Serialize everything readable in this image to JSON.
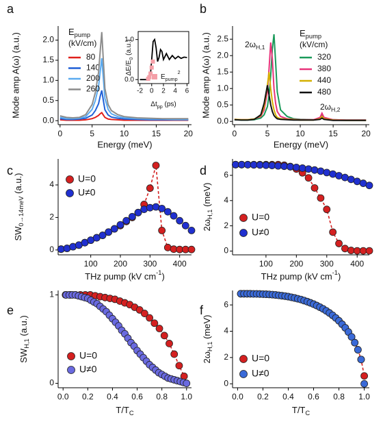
{
  "chart_data": [
    {
      "panel": "a",
      "type": "line",
      "xlabel": "Energy (meV)",
      "ylabel": "Mode amp A(ω) (a.u.)",
      "legend_title": {
        "base": "E",
        "sub": "pump"
      },
      "legend_subtitle": "(kV/cm)",
      "x": [
        0,
        1,
        2,
        3,
        4,
        5,
        5.5,
        6,
        6.25,
        6.5,
        6.75,
        7,
        7.5,
        8,
        9,
        10,
        12,
        14,
        16,
        18,
        20
      ],
      "series": [
        {
          "name": "80",
          "color": "#e0201b",
          "values": [
            0.02,
            0.01,
            0.01,
            0.01,
            0.02,
            0.05,
            0.08,
            0.13,
            0.17,
            0.2,
            0.14,
            0.08,
            0.04,
            0.03,
            0.02,
            0.01,
            0.01,
            0.01,
            0.01,
            0.01,
            0.01
          ]
        },
        {
          "name": "140",
          "color": "#1f5fd6",
          "values": [
            0.05,
            0.03,
            0.03,
            0.04,
            0.06,
            0.14,
            0.25,
            0.42,
            0.6,
            0.75,
            0.5,
            0.27,
            0.14,
            0.09,
            0.06,
            0.04,
            0.03,
            0.02,
            0.02,
            0.02,
            0.02
          ]
        },
        {
          "name": "200",
          "color": "#5aaaf0",
          "values": [
            0.08,
            0.05,
            0.05,
            0.06,
            0.1,
            0.28,
            0.5,
            0.85,
            1.2,
            1.55,
            1.05,
            0.55,
            0.28,
            0.17,
            0.1,
            0.07,
            0.05,
            0.04,
            0.04,
            0.03,
            0.03
          ]
        },
        {
          "name": "260",
          "color": "#8c8c8c",
          "values": [
            0.12,
            0.08,
            0.07,
            0.08,
            0.15,
            0.4,
            0.7,
            1.2,
            1.7,
            2.2,
            1.5,
            0.8,
            0.4,
            0.25,
            0.15,
            0.1,
            0.07,
            0.06,
            0.05,
            0.05,
            0.05
          ]
        }
      ],
      "xlim": [
        -0.3,
        20.5
      ],
      "ylim": [
        -0.1,
        2.35
      ],
      "xticks": [
        0,
        5,
        10,
        15,
        20
      ],
      "yticks": [
        {
          "value": 0,
          "label": "0.0"
        },
        0.5,
        {
          "value": 1,
          "label": "1.0"
        },
        1.5,
        {
          "value": 2,
          "label": "2.0"
        }
      ]
    },
    {
      "type": "line",
      "xlabel": {
        "base": "Δt",
        "sub": "pp",
        "rest": " (ps)"
      },
      "ylabel": {
        "base": "ΔE/E",
        "sub": "0",
        "rest": " (a.u.)"
      },
      "x": [
        -2,
        -1.5,
        -1,
        -0.5,
        -0.25,
        0,
        0.25,
        0.5,
        0.75,
        1,
        1.25,
        1.5,
        1.75,
        2,
        2.5,
        3,
        3.5,
        4,
        4.5,
        5,
        5.5,
        6
      ],
      "series": [
        {
          "color": "#000000",
          "values": [
            0,
            0,
            0,
            0,
            0.05,
            0.5,
            0.95,
            1.0,
            0.8,
            0.45,
            0.55,
            0.75,
            0.7,
            0.5,
            0.65,
            0.5,
            0.6,
            0.52,
            0.58,
            0.53,
            0.56,
            0.55
          ]
        },
        {
          "name": {
            "base": "E",
            "sub": "pump",
            "sup": "2"
          },
          "color": "#f4a0a8",
          "marker": "square",
          "x": [
            -0.6,
            -0.4,
            -0.2,
            0,
            0.2
          ],
          "values": [
            0.02,
            0.06,
            0.15,
            0.3,
            0.45
          ]
        }
      ],
      "xlim": [
        -2.3,
        6.3
      ],
      "ylim": [
        -0.1,
        1.2
      ],
      "xticks": [
        -2,
        0,
        2,
        4,
        6
      ],
      "yticks": [
        {
          "value": 0,
          "label": "0.0"
        },
        {
          "value": 1,
          "label": "1.0"
        }
      ]
    },
    {
      "panel": "b",
      "type": "line",
      "xlabel": "Energy (meV)",
      "ylabel": "Mode amp A(ω) (a.u.)",
      "legend_title": {
        "base": "E",
        "sub": "pump"
      },
      "legend_subtitle": "(kV/cm)",
      "annotations": [
        {
          "base": "2ω",
          "sub": "H,1"
        },
        {
          "base": "2ω",
          "sub": "H,2"
        }
      ],
      "x": [
        0,
        1,
        2,
        3,
        4,
        4.5,
        5,
        5.25,
        5.5,
        5.75,
        6,
        6.25,
        6.5,
        7,
        8,
        9,
        10,
        12,
        13,
        13.3,
        13.6,
        15,
        17,
        20
      ],
      "series": [
        {
          "name": "320",
          "color": "#1a9a5a",
          "values": [
            0.05,
            0.04,
            0.04,
            0.05,
            0.1,
            0.2,
            0.45,
            0.8,
            1.4,
            2.2,
            2.65,
            1.8,
            0.9,
            0.35,
            0.15,
            0.08,
            0.06,
            0.05,
            0.1,
            0.22,
            0.1,
            0.05,
            0.04,
            0.04
          ]
        },
        {
          "name": "380",
          "color": "#e8337a",
          "values": [
            0.06,
            0.05,
            0.05,
            0.07,
            0.15,
            0.35,
            0.9,
            1.6,
            2.4,
            1.9,
            1.0,
            0.55,
            0.3,
            0.15,
            0.08,
            0.06,
            0.05,
            0.05,
            0.12,
            0.25,
            0.12,
            0.05,
            0.04,
            0.04
          ]
        },
        {
          "name": "440",
          "color": "#d4b000",
          "values": [
            0.06,
            0.05,
            0.05,
            0.07,
            0.18,
            0.45,
            1.1,
            1.5,
            1.0,
            0.6,
            0.35,
            0.2,
            0.12,
            0.08,
            0.06,
            0.05,
            0.04,
            0.04,
            0.08,
            0.15,
            0.08,
            0.04,
            0.03,
            0.03
          ]
        },
        {
          "name": "480",
          "color": "#111111",
          "values": [
            0.05,
            0.04,
            0.04,
            0.06,
            0.2,
            0.55,
            1.1,
            0.8,
            0.5,
            0.3,
            0.18,
            0.12,
            0.08,
            0.06,
            0.05,
            0.04,
            0.04,
            0.04,
            0.06,
            0.1,
            0.06,
            0.03,
            0.03,
            0.03
          ]
        }
      ],
      "xlim": [
        -0.3,
        20.5
      ],
      "ylim": [
        -0.1,
        2.9
      ],
      "xticks": [
        0,
        5,
        10,
        15,
        20
      ],
      "yticks": [
        {
          "value": 0,
          "label": "0.0"
        },
        0.5,
        {
          "value": 1,
          "label": "1.0"
        },
        1.5,
        {
          "value": 2,
          "label": "2.0"
        },
        2.5
      ]
    },
    {
      "panel": "c",
      "type": "scatter",
      "xlabel": {
        "base": "THz pump  (kV cm",
        "sup": "-1",
        "rest": ")"
      },
      "ylabel": {
        "base": "SW",
        "sub": "0→14meV",
        "rest": " (a.u.)"
      },
      "x": [
        0,
        20,
        40,
        60,
        80,
        100,
        120,
        140,
        160,
        180,
        200,
        220,
        240,
        260,
        280,
        300,
        320,
        340,
        360,
        380,
        400,
        420,
        440
      ],
      "series": [
        {
          "name": "U=0",
          "color": "#d42020",
          "line": "dashed",
          "values": [
            0.05,
            0.1,
            0.2,
            0.3,
            0.45,
            0.6,
            0.75,
            0.9,
            1.1,
            1.3,
            1.5,
            1.75,
            2.0,
            2.3,
            2.8,
            3.8,
            5.2,
            1.2,
            0.15,
            0.05,
            0.03,
            0.03,
            0.03
          ]
        },
        {
          "name": "U≠0",
          "color": "#2030d0",
          "values": [
            0.05,
            0.1,
            0.2,
            0.3,
            0.45,
            0.6,
            0.75,
            0.9,
            1.1,
            1.3,
            1.55,
            1.8,
            2.05,
            2.3,
            2.5,
            2.6,
            2.65,
            2.55,
            2.35,
            2.1,
            1.8,
            1.5,
            1.2
          ]
        }
      ],
      "xlim": [
        -10,
        440
      ],
      "ylim": [
        -0.3,
        5.6
      ],
      "xticks": [
        100,
        200,
        300,
        400
      ],
      "yticks": [
        0,
        2,
        4
      ]
    },
    {
      "panel": "d",
      "type": "scatter",
      "xlabel": {
        "base": "THz pump  (kV cm",
        "sup": "-1",
        "rest": ")"
      },
      "ylabel": {
        "base": "2ω",
        "sub": "H,1",
        "rest": " (meV)"
      },
      "x": [
        0,
        20,
        40,
        60,
        80,
        100,
        120,
        140,
        160,
        180,
        200,
        220,
        240,
        260,
        280,
        300,
        320,
        340,
        360,
        380,
        400,
        420,
        440
      ],
      "series": [
        {
          "name": "U=0",
          "color": "#d42020",
          "line": "dashed",
          "values": [
            6.85,
            6.85,
            6.85,
            6.85,
            6.85,
            6.85,
            6.85,
            6.85,
            6.8,
            6.7,
            6.5,
            6.2,
            5.8,
            5.0,
            4.2,
            3.3,
            1.5,
            0.6,
            0.2,
            0.05,
            0.02,
            0.02,
            0.02
          ]
        },
        {
          "name": "U≠0",
          "color": "#2030d0",
          "values": [
            6.85,
            6.85,
            6.84,
            6.83,
            6.82,
            6.8,
            6.78,
            6.75,
            6.72,
            6.68,
            6.63,
            6.57,
            6.5,
            6.42,
            6.33,
            6.22,
            6.1,
            5.97,
            5.83,
            5.68,
            5.52,
            5.37,
            5.2
          ]
        }
      ],
      "xlim": [
        -10,
        440
      ],
      "ylim": [
        -0.3,
        7.3
      ],
      "xticks": [
        100,
        200,
        300,
        400
      ],
      "yticks": [
        0,
        2,
        4,
        6
      ]
    },
    {
      "panel": "e",
      "type": "scatter",
      "xlabel": {
        "base": "T/T",
        "sub": "C"
      },
      "ylabel": {
        "base": "SW",
        "sub": "H,1",
        "rest": " (a.u.)"
      },
      "series": [
        {
          "name": "U=0",
          "color": "#d42020",
          "line": "dashed",
          "x": [
            0.02,
            0.06,
            0.1,
            0.14,
            0.18,
            0.22,
            0.26,
            0.3,
            0.34,
            0.38,
            0.42,
            0.46,
            0.5,
            0.54,
            0.58,
            0.62,
            0.66,
            0.7,
            0.74,
            0.78,
            0.82,
            0.86,
            0.9,
            0.94,
            0.98
          ],
          "values": [
            1,
            1,
            1,
            1,
            1,
            1,
            0.99,
            0.98,
            0.97,
            0.96,
            0.95,
            0.93,
            0.91,
            0.89,
            0.86,
            0.83,
            0.79,
            0.74,
            0.68,
            0.62,
            0.54,
            0.45,
            0.33,
            0.2,
            0.08
          ]
        },
        {
          "name": "U≠0",
          "color": "#6a6ae0",
          "x": [
            0.025,
            0.05,
            0.075,
            0.1,
            0.125,
            0.15,
            0.175,
            0.2,
            0.225,
            0.25,
            0.275,
            0.3,
            0.325,
            0.35,
            0.375,
            0.4,
            0.425,
            0.45,
            0.475,
            0.5,
            0.525,
            0.55,
            0.575,
            0.6,
            0.625,
            0.65,
            0.675,
            0.7,
            0.725,
            0.75,
            0.775,
            0.8,
            0.825,
            0.85,
            0.875,
            0.9,
            0.925,
            0.95,
            0.975,
            1.0
          ],
          "values": [
            1,
            1,
            1,
            1,
            0.99,
            0.98,
            0.97,
            0.96,
            0.94,
            0.92,
            0.9,
            0.87,
            0.84,
            0.81,
            0.77,
            0.73,
            0.69,
            0.65,
            0.6,
            0.56,
            0.51,
            0.46,
            0.42,
            0.37,
            0.33,
            0.29,
            0.25,
            0.21,
            0.18,
            0.15,
            0.12,
            0.1,
            0.08,
            0.06,
            0.05,
            0.04,
            0.03,
            0.02,
            0.01,
            0
          ]
        }
      ],
      "xlim": [
        -0.04,
        1.04
      ],
      "ylim": [
        -0.05,
        1.05
      ],
      "xticks": [
        {
          "value": 0,
          "label": "0.0"
        },
        0.2,
        0.4,
        0.6,
        0.8,
        {
          "value": 1,
          "label": "1.0"
        }
      ],
      "yticks": [
        0,
        1
      ]
    },
    {
      "panel": "f",
      "type": "scatter",
      "xlabel": {
        "base": "T/T",
        "sub": "C"
      },
      "ylabel": {
        "base": "2ω",
        "sub": "H,1",
        "rest": " (meV)"
      },
      "x": [
        0.025,
        0.05,
        0.075,
        0.1,
        0.125,
        0.15,
        0.175,
        0.2,
        0.225,
        0.25,
        0.275,
        0.3,
        0.325,
        0.35,
        0.375,
        0.4,
        0.425,
        0.45,
        0.475,
        0.5,
        0.525,
        0.55,
        0.575,
        0.6,
        0.625,
        0.65,
        0.675,
        0.7,
        0.725,
        0.75,
        0.775,
        0.8,
        0.825,
        0.85,
        0.875,
        0.9,
        0.925,
        0.95,
        0.975,
        1.0
      ],
      "series": [
        {
          "name": "U=0",
          "color": "#d42020",
          "line": "dashed",
          "values": [
            6.85,
            6.85,
            6.85,
            6.85,
            6.84,
            6.84,
            6.83,
            6.82,
            6.81,
            6.8,
            6.78,
            6.76,
            6.73,
            6.7,
            6.67,
            6.63,
            6.58,
            6.53,
            6.47,
            6.41,
            6.33,
            6.25,
            6.16,
            6.06,
            5.95,
            5.83,
            5.7,
            5.55,
            5.39,
            5.21,
            5.01,
            4.79,
            4.53,
            4.26,
            3.94,
            3.57,
            3.13,
            2.59,
            1.85,
            0.6
          ]
        },
        {
          "name": "U≠0",
          "color": "#3a6ad8",
          "values": [
            6.85,
            6.85,
            6.85,
            6.85,
            6.84,
            6.84,
            6.83,
            6.82,
            6.81,
            6.8,
            6.78,
            6.76,
            6.73,
            6.7,
            6.67,
            6.63,
            6.58,
            6.53,
            6.47,
            6.41,
            6.33,
            6.25,
            6.16,
            6.06,
            5.95,
            5.83,
            5.7,
            5.55,
            5.39,
            5.21,
            5.01,
            4.79,
            4.53,
            4.26,
            3.94,
            3.57,
            3.13,
            2.59,
            1.85,
            0
          ]
        }
      ],
      "xlim": [
        -0.04,
        1.04
      ],
      "ylim": [
        -0.3,
        7.1
      ],
      "xticks": [
        {
          "value": 0,
          "label": "0.0"
        },
        0.2,
        0.4,
        0.6,
        0.8,
        {
          "value": 1,
          "label": "1.0"
        }
      ],
      "yticks": [
        0,
        2,
        4,
        6
      ]
    }
  ]
}
